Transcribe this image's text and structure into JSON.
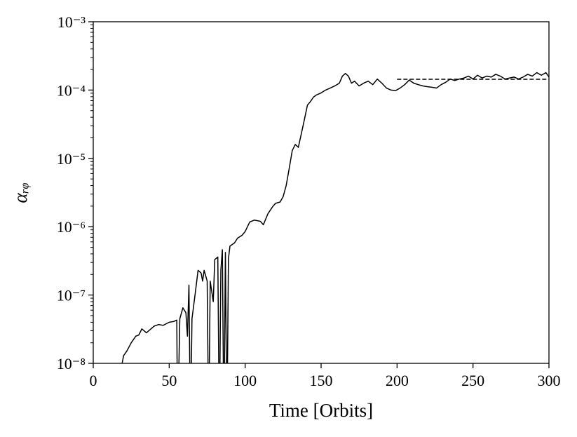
{
  "chart_data": {
    "type": "line",
    "x_label": "Time [Orbits]",
    "y_label": "αᵣᵩ",
    "yscale": "log",
    "xlim": [
      0,
      300
    ],
    "ylim": [
      1e-08,
      0.001
    ],
    "xticks": [
      0,
      50,
      100,
      150,
      200,
      250,
      300
    ],
    "yticks": [
      {
        "value": 1e-08,
        "label": "10⁻⁸"
      },
      {
        "value": 1e-07,
        "label": "10⁻⁷"
      },
      {
        "value": 1e-06,
        "label": "10⁻⁶"
      },
      {
        "value": 1e-05,
        "label": "10⁻⁵"
      },
      {
        "value": 0.0001,
        "label": "10⁻⁴"
      },
      {
        "value": 0.001,
        "label": "10⁻³"
      }
    ],
    "yminorticks": [
      2e-08,
      3e-08,
      4e-08,
      5e-08,
      6e-08,
      7e-08,
      8e-08,
      9e-08,
      2e-07,
      3e-07,
      4e-07,
      5e-07,
      6e-07,
      7e-07,
      8e-07,
      9e-07,
      2e-06,
      3e-06,
      4e-06,
      5e-06,
      6e-06,
      7e-06,
      8e-06,
      9e-06,
      2e-05,
      3e-05,
      4e-05,
      5e-05,
      6e-05,
      7e-05,
      8e-05,
      9e-05,
      0.0002,
      0.0003,
      0.0004,
      0.0005,
      0.0006,
      0.0007,
      0.0008,
      0.0009
    ],
    "series": [
      {
        "color": "#000000",
        "dash": false,
        "x": [
          19,
          20,
          22,
          25,
          28,
          30,
          32,
          35,
          38,
          40,
          43,
          46,
          50,
          53,
          55,
          55.5,
          57,
          59,
          61,
          62,
          63,
          64,
          65,
          67,
          69,
          71,
          72,
          73,
          75,
          76,
          77,
          79,
          80,
          82,
          83,
          84,
          85,
          86,
          87,
          88,
          89,
          90,
          93,
          95,
          98,
          100,
          103,
          106,
          110,
          112,
          115,
          118,
          120,
          123,
          125,
          127,
          129,
          131,
          133,
          135,
          137,
          139,
          141,
          143,
          145,
          147,
          150,
          153,
          156,
          159,
          162,
          164,
          166,
          168,
          170,
          172,
          175,
          178,
          181,
          184,
          187,
          190,
          193,
          196,
          199,
          202,
          205,
          208,
          211,
          214,
          217,
          220,
          223,
          226,
          229,
          232,
          235,
          238,
          241,
          244,
          247,
          250,
          253,
          256,
          259,
          262,
          265,
          268,
          271,
          274,
          277,
          280,
          283,
          286,
          289,
          292,
          295,
          298,
          300
        ],
        "values": [
          1e-08,
          1.3e-08,
          1.5e-08,
          2e-08,
          2.5e-08,
          2.6e-08,
          3.2e-08,
          2.8e-08,
          3.2e-08,
          3.5e-08,
          3.7e-08,
          3.6e-08,
          4e-08,
          4.1e-08,
          4.3e-08,
          1e-09,
          4.5e-08,
          6.5e-08,
          5.5e-08,
          2.5e-08,
          1.4e-07,
          1e-09,
          4.5e-08,
          1e-07,
          2.3e-07,
          2.1e-07,
          1.6e-07,
          2.3e-07,
          1.6e-07,
          1e-09,
          1.6e-07,
          8e-08,
          3.3e-07,
          3.6e-07,
          1e-09,
          2.3e-07,
          4.6e-07,
          1e-09,
          4.2e-07,
          1e-09,
          3.4e-07,
          5.2e-07,
          5.8e-07,
          6.8e-07,
          7.5e-07,
          8.5e-07,
          1.17e-06,
          1.25e-06,
          1.2e-06,
          1.07e-06,
          1.55e-06,
          1.95e-06,
          2.2e-06,
          2.3e-06,
          2.75e-06,
          4e-06,
          7.1e-06,
          1.3e-05,
          1.6e-05,
          1.45e-05,
          2.3e-05,
          3.7e-05,
          6e-05,
          6.8e-05,
          7.9e-05,
          8.5e-05,
          9.1e-05,
          0.0001,
          0.000107,
          0.000115,
          0.000126,
          0.00016,
          0.000175,
          0.00016,
          0.000126,
          0.000135,
          0.000115,
          0.000126,
          0.000135,
          0.00012,
          0.000145,
          0.000126,
          0.000107,
          0.0001,
          9.8e-05,
          0.000107,
          0.00012,
          0.00014,
          0.000126,
          0.00012,
          0.000115,
          0.000112,
          0.00011,
          0.000107,
          0.00012,
          0.00013,
          0.000145,
          0.000138,
          0.000145,
          0.00015,
          0.00016,
          0.000145,
          0.000165,
          0.00015,
          0.00016,
          0.000155,
          0.00017,
          0.00016,
          0.000145,
          0.00015,
          0.000155,
          0.000145,
          0.000155,
          0.00017,
          0.00016,
          0.00018,
          0.000165,
          0.00018,
          0.000155
        ]
      },
      {
        "color": "#000000",
        "dash": true,
        "x": [
          200,
          300
        ],
        "values": [
          0.000144,
          0.000144
        ]
      }
    ]
  }
}
